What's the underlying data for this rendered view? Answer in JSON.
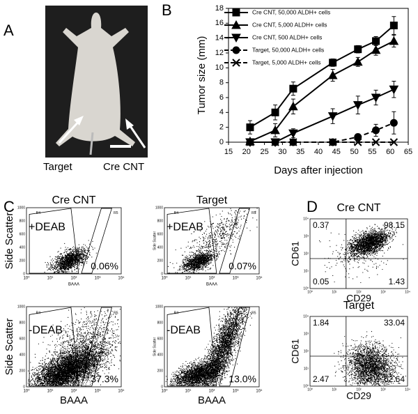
{
  "panel_labels": [
    "A",
    "B",
    "C",
    "D"
  ],
  "panel_a": {
    "labels": [
      "Target",
      "Cre CNT"
    ]
  },
  "chart_data": {
    "type": "line",
    "x_label": "Days after injection",
    "y_label": "Tumor size (mm)",
    "x": [
      21,
      28,
      33,
      44,
      51,
      56,
      61
    ],
    "xlim": [
      15,
      65
    ],
    "xticks": [
      15,
      20,
      25,
      30,
      35,
      40,
      45,
      50,
      55,
      60,
      65
    ],
    "ylim": [
      0,
      18
    ],
    "yticks": [
      0,
      2,
      4,
      6,
      8,
      10,
      12,
      14,
      16,
      18
    ],
    "legend": "upper left",
    "series": [
      {
        "name": "Cre CNT, 50,000 ALDH+ cells",
        "color": "#000000",
        "marker": "square",
        "dash": "solid",
        "values": [
          2,
          4,
          7.2,
          10.7,
          12.5,
          13.6,
          15.7
        ],
        "errors": [
          0.9,
          1,
          0.9,
          0.5,
          0.5,
          0.6,
          1.2
        ]
      },
      {
        "name": "Cre CNT, 5,000 ALDH+ cells",
        "color": "#000000",
        "marker": "triangle-up",
        "dash": "solid",
        "values": [
          0.1,
          1.6,
          4.8,
          9,
          10.8,
          12.4,
          13.6
        ],
        "errors": [
          0.3,
          0.9,
          1,
          0.8,
          0.6,
          0.7,
          0.8
        ]
      },
      {
        "name": "Cre CNT, 500 ALDH+ cells",
        "color": "#000000",
        "marker": "triangle-down",
        "dash": "solid",
        "values": [
          0,
          0,
          1.2,
          3.5,
          5,
          6,
          7.1
        ],
        "errors": [
          0,
          0,
          0.6,
          1,
          1.2,
          1,
          1.1
        ]
      },
      {
        "name": "Target, 50,000 ALDH+ cells",
        "color": "#000000",
        "marker": "circle",
        "dash": "dashed",
        "values": [
          0,
          0,
          0,
          0,
          0.7,
          1.6,
          2.6
        ],
        "errors": [
          0,
          0,
          0,
          0,
          0.4,
          0.8,
          1.5
        ]
      },
      {
        "name": "Target, 5,000 ALDH+ cells",
        "color": "#000000",
        "marker": "x",
        "dash": "dashed",
        "values": [
          0,
          0,
          0,
          0,
          0,
          0,
          0
        ]
      }
    ]
  },
  "panel_c": {
    "columns": [
      "Cre CNT",
      "Target"
    ],
    "rows": [
      "+DEAB",
      "-DEAB"
    ],
    "percentages": [
      [
        "0.06%",
        "0.07%"
      ],
      [
        "37.3%",
        "13.0%"
      ]
    ],
    "y_label": "Side Scatter",
    "x_label": "BAAA",
    "gates": [
      "R4",
      "R5"
    ],
    "yticks": [
      "0",
      "200",
      "400",
      "600",
      "800",
      "1000"
    ],
    "xticks": [
      "10⁰",
      "10¹",
      "10²",
      "10³",
      "10⁴"
    ]
  },
  "panel_d": {
    "titles": [
      "Cre CNT",
      "Target"
    ],
    "quadrants": [
      [
        "0.37",
        "98.15",
        "0.05",
        "1.43"
      ],
      [
        "1.84",
        "33.04",
        "2.47",
        "62.64"
      ]
    ],
    "y_label": "CD61",
    "x_label": "CD29",
    "ticks": [
      "10⁰",
      "10¹",
      "10²",
      "10³",
      "10⁴"
    ]
  }
}
